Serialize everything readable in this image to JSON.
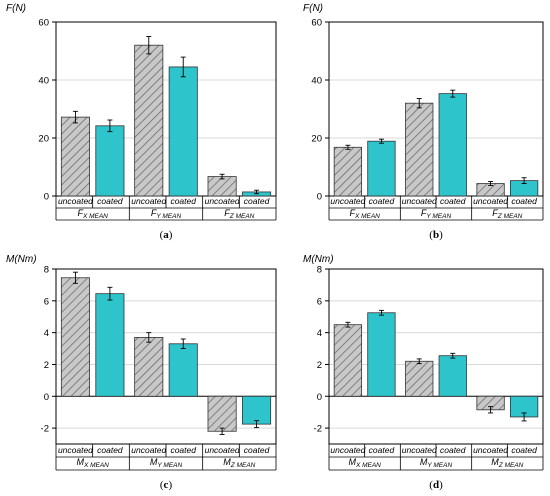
{
  "colors": {
    "uncoated_fill": "#c8c8c8",
    "uncoated_hatch": "#6e6e6e",
    "coated_fill": "#2ec4cc",
    "axis": "#000000",
    "grid": "#d9d9d9"
  },
  "chart_data": [
    {
      "type": "bar",
      "panel_label": "a",
      "ylabel": "F(N)",
      "ylim": [
        0,
        60
      ],
      "yticks": [
        0,
        20,
        40,
        60
      ],
      "grid": true,
      "series_labels": [
        "uncoated",
        "coated"
      ],
      "groups": [
        {
          "main": "F",
          "sub": "X MEAN",
          "uncoated": 27.2,
          "uncoated_err": 2.0,
          "coated": 24.2,
          "coated_err": 2.0
        },
        {
          "main": "F",
          "sub": "Y MEAN",
          "uncoated": 52.0,
          "uncoated_err": 3.0,
          "coated": 44.5,
          "coated_err": 3.4
        },
        {
          "main": "F",
          "sub": "Z MEAN",
          "uncoated": 6.7,
          "uncoated_err": 0.8,
          "coated": 1.4,
          "coated_err": 0.6
        }
      ]
    },
    {
      "type": "bar",
      "panel_label": "b",
      "ylabel": "F(N)",
      "ylim": [
        0,
        60
      ],
      "yticks": [
        0,
        20,
        40,
        60
      ],
      "grid": true,
      "series_labels": [
        "uncoated",
        "coated"
      ],
      "groups": [
        {
          "main": "F",
          "sub": "X MEAN",
          "uncoated": 16.8,
          "uncoated_err": 0.7,
          "coated": 18.9,
          "coated_err": 0.7
        },
        {
          "main": "F",
          "sub": "Y MEAN",
          "uncoated": 32.0,
          "uncoated_err": 1.6,
          "coated": 35.3,
          "coated_err": 1.2
        },
        {
          "main": "F",
          "sub": "Z MEAN",
          "uncoated": 4.3,
          "uncoated_err": 0.7,
          "coated": 5.3,
          "coated_err": 1.0
        }
      ]
    },
    {
      "type": "bar",
      "panel_label": "c",
      "ylabel": "M(Nm)",
      "ylim": [
        -3,
        8
      ],
      "yticks": [
        -2,
        0,
        2,
        4,
        6,
        8
      ],
      "grid": true,
      "series_labels": [
        "uncoated",
        "coated"
      ],
      "groups": [
        {
          "main": "M",
          "sub": "X MEAN",
          "uncoated": 7.45,
          "uncoated_err": 0.35,
          "coated": 6.45,
          "coated_err": 0.4
        },
        {
          "main": "M",
          "sub": "Y MEAN",
          "uncoated": 3.7,
          "uncoated_err": 0.3,
          "coated": 3.3,
          "coated_err": 0.3
        },
        {
          "main": "M",
          "sub": "Z MEAN",
          "uncoated": -2.2,
          "uncoated_err": 0.2,
          "coated": -1.75,
          "coated_err": 0.22
        }
      ]
    },
    {
      "type": "bar",
      "panel_label": "d",
      "ylabel": "M(Nm)",
      "ylim": [
        -3,
        8
      ],
      "yticks": [
        -2,
        0,
        2,
        4,
        6,
        8
      ],
      "grid": true,
      "series_labels": [
        "uncoated",
        "coated"
      ],
      "groups": [
        {
          "main": "M",
          "sub": "X MEAN",
          "uncoated": 4.5,
          "uncoated_err": 0.15,
          "coated": 5.25,
          "coated_err": 0.15
        },
        {
          "main": "M",
          "sub": "Y MEAN",
          "uncoated": 2.2,
          "uncoated_err": 0.15,
          "coated": 2.55,
          "coated_err": 0.15
        },
        {
          "main": "M",
          "sub": "Z MEAN",
          "uncoated": -0.85,
          "uncoated_err": 0.2,
          "coated": -1.3,
          "coated_err": 0.25
        }
      ]
    }
  ]
}
